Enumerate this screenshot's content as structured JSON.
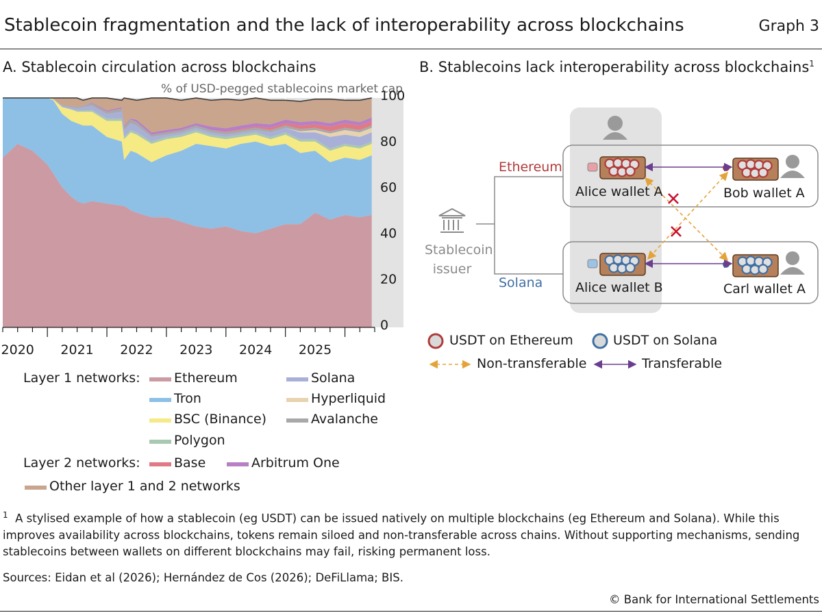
{
  "title": "Stablecoin fragmentation and the lack of interoperability across blockchains",
  "graph_number": "Graph 3",
  "panel_a": {
    "title": "A. Stablecoin circulation across blockchains",
    "unit": "% of USD-pegged stablecoins market cap",
    "legend_l1_label": "Layer 1 networks:",
    "legend_l2_label": "Layer 2 networks:"
  },
  "panel_b": {
    "title": "B. Stablecoins lack interoperability across blockchains",
    "title_sup": "1",
    "issuer_line1": "Stablecoin",
    "issuer_line2": "issuer",
    "chain_ethereum": "Ethereum",
    "chain_solana": "Solana",
    "wallets": {
      "alice_a": "Alice wallet A",
      "bob_a": "Bob wallet A",
      "alice_b": "Alice wallet B",
      "carl_a": "Carl wallet A"
    },
    "legend": {
      "usdt_eth": "USDT on Ethereum",
      "usdt_sol": "USDT on Solana",
      "non_transferable": "Non-transferable",
      "transferable": "Transferable"
    },
    "colors": {
      "ethereum_red": "#b03a3a",
      "solana_blue": "#3f6fa3",
      "wallet_brown": "#b5805a",
      "transferable_purple": "#6a3d8f",
      "non_transferable_orange": "#e4a33a",
      "cross_red": "#c8102e"
    }
  },
  "chart_data": {
    "type": "area",
    "stacked": true,
    "x": [
      2019.75,
      2020.0,
      2020.25,
      2020.5,
      2020.6,
      2020.75,
      2020.9,
      2021.0,
      2021.1,
      2021.25,
      2021.5,
      2021.75,
      2021.79,
      2021.9,
      2022.0,
      2022.25,
      2022.5,
      2022.75,
      2023.0,
      2023.25,
      2023.5,
      2023.75,
      2024.0,
      2024.25,
      2024.5,
      2024.75,
      2025.0,
      2025.25,
      2025.5,
      2025.75,
      2025.95
    ],
    "x_tick_labels": [
      "2020",
      "2021",
      "2022",
      "2023",
      "2024",
      "2025"
    ],
    "series": [
      {
        "name": "Ethereum",
        "color": "#cc9aa3",
        "values": [
          74,
          80,
          77,
          71,
          67,
          61,
          57,
          55,
          54,
          55,
          54,
          53,
          53,
          51,
          50,
          48,
          48,
          46,
          44,
          43,
          44,
          42,
          41,
          43,
          45,
          45,
          50,
          47,
          49,
          48,
          49
        ]
      },
      {
        "name": "Tron",
        "color": "#8ec0e5",
        "values": [
          26,
          20,
          23,
          29,
          32,
          32,
          33,
          34,
          34,
          33,
          29,
          28,
          20,
          26,
          26,
          24,
          27,
          31,
          36,
          36,
          34,
          38,
          40,
          36,
          35,
          31,
          27,
          25,
          25,
          25,
          26
        ]
      },
      {
        "name": "BSC (Binance)",
        "color": "#f6ea85",
        "values": [
          0,
          0,
          0,
          0,
          0.5,
          3,
          5,
          5,
          6,
          6,
          7,
          9,
          9,
          8,
          8,
          8,
          7,
          6,
          5,
          4,
          4,
          3,
          3,
          3,
          4,
          5,
          4,
          5,
          5,
          5,
          5
        ]
      },
      {
        "name": "Polygon",
        "color": "#a8c8b0",
        "values": [
          0,
          0,
          0,
          0,
          0,
          0,
          0,
          0.5,
          0.5,
          0.7,
          1,
          1,
          1,
          1,
          1,
          1,
          1,
          1,
          1,
          1,
          1,
          1,
          1,
          1,
          1,
          1,
          1,
          1,
          1,
          1,
          1
        ]
      },
      {
        "name": "Solana",
        "color": "#a9b0d8",
        "values": [
          0,
          0,
          0,
          0,
          0,
          0.5,
          1,
          1,
          1.5,
          2,
          2,
          3,
          3,
          3,
          3,
          2,
          1,
          1,
          1,
          1,
          1,
          1,
          1,
          2,
          2,
          3,
          3,
          5,
          4,
          4,
          4
        ]
      },
      {
        "name": "Hyperliquid",
        "color": "#e8d3b0",
        "values": [
          0,
          0,
          0,
          0,
          0,
          0,
          0,
          0,
          0,
          0,
          0,
          0,
          0,
          0,
          0,
          0,
          0,
          0,
          0,
          0,
          0,
          0,
          0,
          0,
          0,
          0.5,
          1,
          1.5,
          2,
          2,
          2
        ]
      },
      {
        "name": "Avalanche",
        "color": "#a8a8a8",
        "values": [
          0,
          0,
          0,
          0,
          0,
          0.3,
          0.5,
          0.5,
          0.7,
          1,
          1,
          1.5,
          1.5,
          1.5,
          1.5,
          1,
          1,
          1,
          1,
          1,
          1,
          1,
          1,
          1,
          1,
          1,
          1,
          1,
          1,
          1,
          1
        ]
      },
      {
        "name": "Base",
        "color": "#e07b85",
        "values": [
          0,
          0,
          0,
          0,
          0,
          0,
          0,
          0,
          0,
          0,
          0,
          0,
          0,
          0,
          0,
          0,
          0,
          0,
          0,
          0,
          0.3,
          0.5,
          0.5,
          1,
          1,
          1.5,
          1.5,
          2,
          2,
          2,
          2
        ]
      },
      {
        "name": "Arbitrum One",
        "color": "#b77fc4",
        "values": [
          0,
          0,
          0,
          0,
          0,
          0,
          0,
          0,
          0,
          0.3,
          0.5,
          0.5,
          0.5,
          0.5,
          1,
          1,
          1,
          1,
          1,
          1.5,
          1.5,
          1.5,
          1.5,
          1.5,
          1.5,
          1.5,
          1.5,
          1.5,
          1.5,
          1.5,
          1.5
        ]
      },
      {
        "name": "Other layer 1 and 2 networks",
        "color": "#c9a58e",
        "values": [
          0,
          0,
          0,
          0,
          0.5,
          3.2,
          3.5,
          4,
          2.3,
          2,
          5.5,
          3,
          12,
          8.5,
          8.5,
          15,
          14,
          12,
          11,
          11.5,
          12.7,
          11,
          11,
          10.5,
          8.5,
          9,
          9.5,
          10.5,
          8.5,
          9.5,
          8.5
        ]
      }
    ],
    "ylim": [
      0,
      100
    ],
    "yticks": [
      0,
      20,
      40,
      60,
      80,
      100
    ],
    "xlim": [
      2019.75,
      2026.25
    ],
    "grid": "vertical",
    "legend_position": "bottom"
  },
  "footnote": "A stylised example of how a stablecoin (eg USDT) can be issued natively on multiple blockchains (eg Ethereum and Solana). While this improves availability across blockchains, tokens remain siloed and non-transferable across chains. Without supporting mechanisms, sending stablecoins between wallets on different blockchains may fail, risking permanent loss.",
  "footnote_marker": "1",
  "sources": "Sources: Eidan et al (2026); Hernández de Cos (2026); DeFiLlama; BIS.",
  "copyright": "© Bank for International Settlements"
}
